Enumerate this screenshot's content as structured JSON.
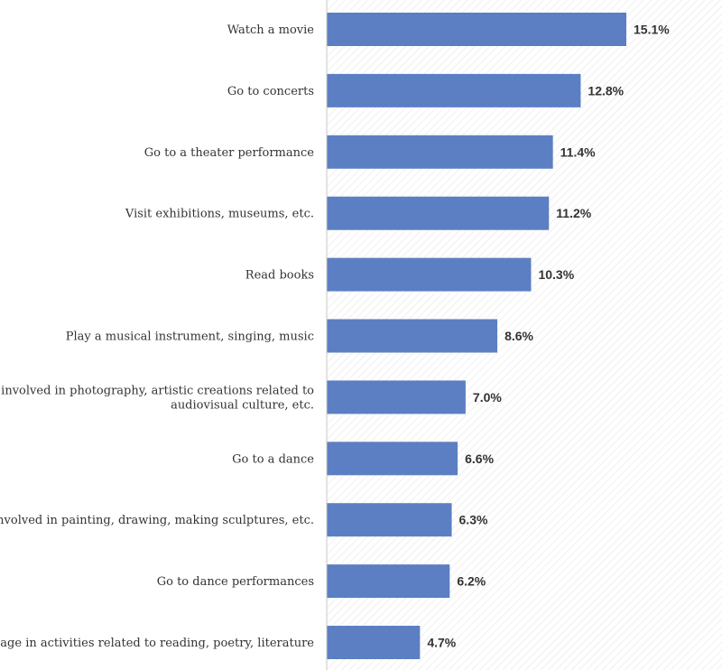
{
  "chart_data": {
    "type": "bar",
    "orientation": "horizontal",
    "categories": [
      "Watch a movie",
      "Go to concerts",
      "Go to a theater performance",
      "Visit exhibitions, museums, etc.",
      "Read books",
      "Play a musical instrument, singing, music",
      "Get involved in photography, artistic creations related to audiovisual culture, etc.",
      "Go to a dance",
      "Get involved in painting, drawing, making sculptures, etc.",
      "Go to dance performances",
      "Engage in activities related to reading, poetry, literature"
    ],
    "category_lines": [
      [
        "Watch a movie"
      ],
      [
        "Go to concerts"
      ],
      [
        "Go to a theater performance"
      ],
      [
        "Visit exhibitions, museums, etc."
      ],
      [
        "Read books"
      ],
      [
        "Play a musical instrument, singing, music"
      ],
      [
        "Get involved in photography, artistic creations related to",
        "audiovisual culture, etc."
      ],
      [
        "Go to a dance"
      ],
      [
        "Get involved in painting, drawing, making sculptures, etc."
      ],
      [
        "Go to dance performances"
      ],
      [
        "Engage in activities related to reading, poetry, literature"
      ]
    ],
    "values": [
      15.1,
      12.8,
      11.4,
      11.2,
      10.3,
      8.6,
      7.0,
      6.6,
      6.3,
      6.2,
      4.7
    ],
    "value_labels": [
      "15.1%",
      "12.8%",
      "11.4%",
      "11.2%",
      "10.3%",
      "8.6%",
      "7.0%",
      "6.6%",
      "6.3%",
      "6.2%",
      "4.7%"
    ],
    "xlim": [
      0,
      20
    ],
    "bar_color": "#5b7fc2",
    "grid": false,
    "legend": "none",
    "title": "",
    "xlabel": "",
    "ylabel": ""
  }
}
